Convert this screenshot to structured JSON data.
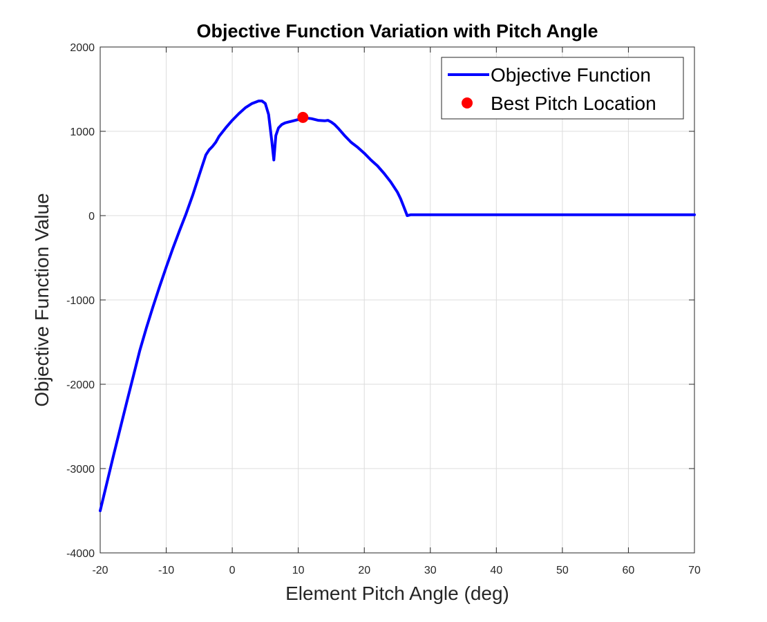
{
  "chart_data": {
    "type": "line",
    "title": "Objective Function Variation with Pitch Angle",
    "xlabel": "Element Pitch Angle (deg)",
    "ylabel": "Objective Function Value",
    "xlim": [
      -20,
      70
    ],
    "ylim": [
      -4000,
      2000
    ],
    "xticks": [
      -20,
      -10,
      0,
      10,
      20,
      30,
      40,
      50,
      60,
      70
    ],
    "yticks": [
      -4000,
      -3000,
      -2000,
      -1000,
      0,
      1000,
      2000
    ],
    "xtick_labels": [
      "-20",
      "-10",
      "0",
      "10",
      "20",
      "30",
      "40",
      "50",
      "60",
      "70"
    ],
    "ytick_labels": [
      "-4000",
      "-3000",
      "-2000",
      "-1000",
      "0",
      "1000",
      "2000"
    ],
    "grid": true,
    "legend_position": "top-right",
    "colors": {
      "objective": "#0000ff",
      "best": "#ff0000"
    },
    "series": [
      {
        "name": "Objective Function",
        "style": "line",
        "x": [
          -20,
          -18,
          -16,
          -14,
          -13,
          -12,
          -11,
          -10,
          -9,
          -8,
          -7,
          -6,
          -5,
          -4.5,
          -4,
          -3.5,
          -3,
          -2.5,
          -2,
          -1,
          0,
          1,
          2,
          3,
          4,
          4.5,
          5,
          5.5,
          6,
          6.3,
          6.6,
          7,
          7.5,
          8,
          8.5,
          9,
          10,
          11,
          12,
          13,
          14,
          14.5,
          15,
          15.5,
          16,
          17,
          18,
          19,
          20,
          21,
          22,
          23,
          24,
          25,
          25.5,
          26,
          26.5,
          27,
          28,
          30,
          40,
          50,
          60,
          70
        ],
        "y": [
          -3500,
          -2850,
          -2220,
          -1600,
          -1330,
          -1080,
          -840,
          -610,
          -390,
          -180,
          20,
          240,
          480,
          600,
          720,
          780,
          820,
          870,
          940,
          1040,
          1130,
          1210,
          1280,
          1330,
          1360,
          1360,
          1330,
          1200,
          880,
          660,
          950,
          1040,
          1080,
          1100,
          1110,
          1120,
          1140,
          1160,
          1150,
          1130,
          1125,
          1130,
          1110,
          1080,
          1040,
          950,
          870,
          810,
          740,
          660,
          590,
          500,
          400,
          280,
          200,
          100,
          0,
          10,
          10,
          10,
          10,
          10,
          10,
          10
        ]
      },
      {
        "name": "Best Pitch Location",
        "style": "marker",
        "x": [
          10.7
        ],
        "y": [
          1165
        ]
      }
    ]
  }
}
